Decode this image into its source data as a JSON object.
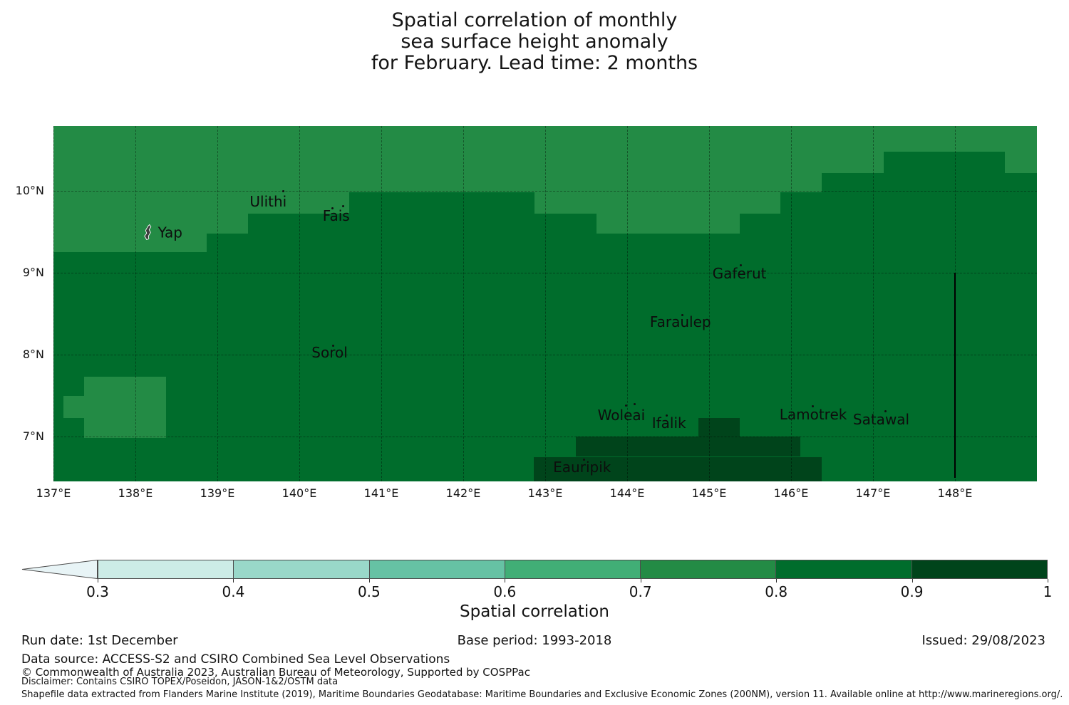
{
  "title": {
    "line1": "Spatial correlation of monthly",
    "line2": "sea surface height anomaly",
    "line3": "for February. Lead time: 2 months"
  },
  "footer": {
    "run_date": "Run date: 1st December",
    "base_period": "Base period: 1993-2018",
    "issued": "Issued: 29/08/2023",
    "data_source": "Data source: ACCESS-S2 and CSIRO Combined Sea Level Observations",
    "copyright": "© Commonwealth of Australia 2023, Australian Bureau of Meteorology, Supported by COSPPac",
    "disclaimer": "Disclaimer: Contains CSIRO TOPEX/Poseidon, JASON-1&2/OSTM data",
    "shapefile": "Shapefile data extracted from Flanders Marine Institute (2019), Maritime Boundaries Geodatabase: Maritime Boundaries and Exclusive Economic Zones (200NM), version 11. Available online at http://www.marineregions.org/."
  },
  "chart_data": {
    "type": "heatmap",
    "title_lines": [
      "Spatial correlation of monthly",
      "sea surface height anomaly",
      "for February. Lead time: 2 months"
    ],
    "colorbar_label": "Spatial correlation",
    "lon_range": [
      137,
      149
    ],
    "lat_range": [
      6.45,
      10.79
    ],
    "grid_lons": [
      137,
      138,
      139,
      140,
      141,
      142,
      143,
      144,
      145,
      146,
      147,
      148
    ],
    "grid_lats": [
      7,
      8,
      9,
      10
    ],
    "x_ticks": [
      {
        "lon": 137,
        "label": "137°E"
      },
      {
        "lon": 138,
        "label": "138°E"
      },
      {
        "lon": 139,
        "label": "139°E"
      },
      {
        "lon": 140,
        "label": "140°E"
      },
      {
        "lon": 141,
        "label": "141°E"
      },
      {
        "lon": 142,
        "label": "142°E"
      },
      {
        "lon": 143,
        "label": "143°E"
      },
      {
        "lon": 144,
        "label": "144°E"
      },
      {
        "lon": 145,
        "label": "145°E"
      },
      {
        "lon": 146,
        "label": "146°E"
      },
      {
        "lon": 147,
        "label": "147°E"
      },
      {
        "lon": 148,
        "label": "148°E"
      }
    ],
    "y_ticks": [
      {
        "lat": 10,
        "label": "10°N"
      },
      {
        "lat": 9,
        "label": "9°N"
      },
      {
        "lat": 8,
        "label": "8°N"
      },
      {
        "lat": 7,
        "label": "7°N"
      }
    ],
    "levels": [
      0.3,
      0.4,
      0.5,
      0.6,
      0.7,
      0.8,
      0.9,
      1.0
    ],
    "colorbar_ticks": [
      "0.3",
      "0.4",
      "0.5",
      "0.6",
      "0.7",
      "0.8",
      "0.9",
      "1"
    ],
    "bin_colors": {
      "under": "#e8f4f6",
      "0.3-0.4": "#ccece6",
      "0.4-0.5": "#99d8c9",
      "0.5-0.6": "#66c2a4",
      "0.6-0.7": "#41ae76",
      "0.7-0.8": "#238b45",
      "0.8-0.9": "#006d2c",
      "0.9-1.0": "#00441b"
    },
    "colorbar_segments": [
      "0.3-0.4",
      "0.4-0.5",
      "0.5-0.6",
      "0.6-0.7",
      "0.7-0.8",
      "0.8-0.9",
      "0.9-1.0"
    ],
    "base_bin": "0.8-0.9",
    "regions": [
      {
        "bin": "0.7-0.8",
        "lon": [
          137.0,
          138.87
        ],
        "lat": [
          9.25,
          10.79
        ]
      },
      {
        "bin": "0.7-0.8",
        "lon": [
          138.87,
          139.37
        ],
        "lat": [
          9.48,
          10.79
        ]
      },
      {
        "bin": "0.7-0.8",
        "lon": [
          139.37,
          140.61
        ],
        "lat": [
          9.72,
          10.79
        ]
      },
      {
        "bin": "0.7-0.8",
        "lon": [
          140.61,
          142.87
        ],
        "lat": [
          9.98,
          10.79
        ]
      },
      {
        "bin": "0.7-0.8",
        "lon": [
          142.87,
          143.63
        ],
        "lat": [
          9.72,
          10.79
        ]
      },
      {
        "bin": "0.7-0.8",
        "lon": [
          143.63,
          145.37
        ],
        "lat": [
          9.48,
          10.79
        ]
      },
      {
        "bin": "0.7-0.8",
        "lon": [
          145.37,
          145.87
        ],
        "lat": [
          9.72,
          10.79
        ]
      },
      {
        "bin": "0.7-0.8",
        "lon": [
          145.87,
          146.37
        ],
        "lat": [
          9.98,
          10.79
        ]
      },
      {
        "bin": "0.7-0.8",
        "lon": [
          146.37,
          147.13
        ],
        "lat": [
          10.22,
          10.79
        ]
      },
      {
        "bin": "0.7-0.8",
        "lon": [
          147.13,
          148.61
        ],
        "lat": [
          10.48,
          10.79
        ]
      },
      {
        "bin": "0.7-0.8",
        "lon": [
          148.61,
          149.0
        ],
        "lat": [
          10.22,
          10.79
        ]
      },
      {
        "bin": "0.7-0.8",
        "lon": [
          137.37,
          138.37
        ],
        "lat": [
          6.98,
          7.73
        ]
      },
      {
        "bin": "0.7-0.8",
        "lon": [
          137.12,
          137.37
        ],
        "lat": [
          7.22,
          7.49
        ]
      },
      {
        "bin": "0.9-1.0",
        "lon": [
          144.87,
          145.37
        ],
        "lat": [
          7.0,
          7.22
        ]
      },
      {
        "bin": "0.9-1.0",
        "lon": [
          143.37,
          146.11
        ],
        "lat": [
          6.75,
          7.0
        ]
      },
      {
        "bin": "0.9-1.0",
        "lon": [
          142.86,
          146.37
        ],
        "lat": [
          6.45,
          6.75
        ]
      }
    ],
    "islands": [
      {
        "name": "Yap",
        "lon": 138.32,
        "lat": 9.49,
        "icon": "yap-island",
        "dots": []
      },
      {
        "name": "Ulithi",
        "lon": 139.62,
        "lat": 9.87,
        "dots": [
          [
            20,
            -16
          ]
        ]
      },
      {
        "name": "Fais",
        "lon": 140.45,
        "lat": 9.69,
        "dots": [
          [
            -7,
            -12
          ],
          [
            8,
            -15
          ]
        ]
      },
      {
        "name": "Sorol",
        "lon": 140.37,
        "lat": 8.02,
        "dots": [
          [
            3,
            -11
          ]
        ]
      },
      {
        "name": "Gaferut",
        "lon": 145.37,
        "lat": 8.99,
        "dots": [
          [
            0,
            -13
          ]
        ]
      },
      {
        "name": "Faraulep",
        "lon": 144.65,
        "lat": 8.4,
        "dots": [
          [
            1,
            -11
          ]
        ]
      },
      {
        "name": "Woleai",
        "lon": 143.93,
        "lat": 7.26,
        "dots": [
          [
            5,
            -15
          ],
          [
            17,
            -17
          ]
        ]
      },
      {
        "name": "Ifalik",
        "lon": 144.51,
        "lat": 7.16,
        "dots": [
          [
            -5,
            -12
          ]
        ]
      },
      {
        "name": "Eauripik",
        "lon": 143.45,
        "lat": 6.62,
        "dots": [
          [
            1,
            -12
          ]
        ]
      },
      {
        "name": "Lamotrek",
        "lon": 146.27,
        "lat": 7.27,
        "dots": [
          [
            -2,
            -13
          ]
        ]
      },
      {
        "name": "Satawal",
        "lon": 147.1,
        "lat": 7.21,
        "dots": [
          [
            4,
            -13
          ]
        ]
      }
    ],
    "eez_boundary": {
      "lon": 148,
      "lat": [
        6.49,
        9.0
      ]
    }
  }
}
